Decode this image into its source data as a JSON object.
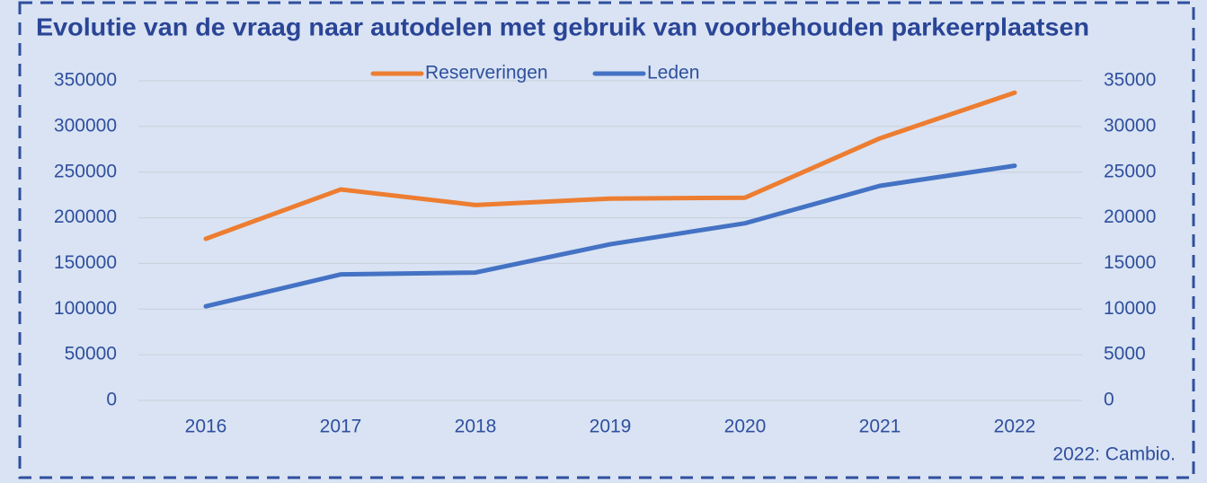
{
  "chart_data": {
    "type": "line",
    "title": "Evolutie van de vraag naar autodelen met gebruik van voorbehouden parkeerplaatsen",
    "categories": [
      "2016",
      "2017",
      "2018",
      "2019",
      "2020",
      "2021",
      "2022"
    ],
    "series": [
      {
        "name": "Reserveringen",
        "color": "#ed7d31",
        "values": [
          177000,
          231000,
          214000,
          221000,
          222000,
          287000,
          337000
        ]
      },
      {
        "name": "Leden",
        "color": "#4472c4",
        "axis": "y2",
        "values": [
          10300,
          13800,
          14000,
          17100,
          19400,
          23500,
          25700
        ]
      }
    ],
    "ylim": [
      0,
      350000
    ],
    "yticks": [
      0,
      50000,
      100000,
      150000,
      200000,
      250000,
      300000,
      350000
    ],
    "y2lim": [
      0,
      35000
    ],
    "y2ticks": [
      0,
      5000,
      10000,
      15000,
      20000,
      25000,
      30000,
      35000
    ],
    "grid": true,
    "legend": "top",
    "note": "2022: Cambio."
  }
}
